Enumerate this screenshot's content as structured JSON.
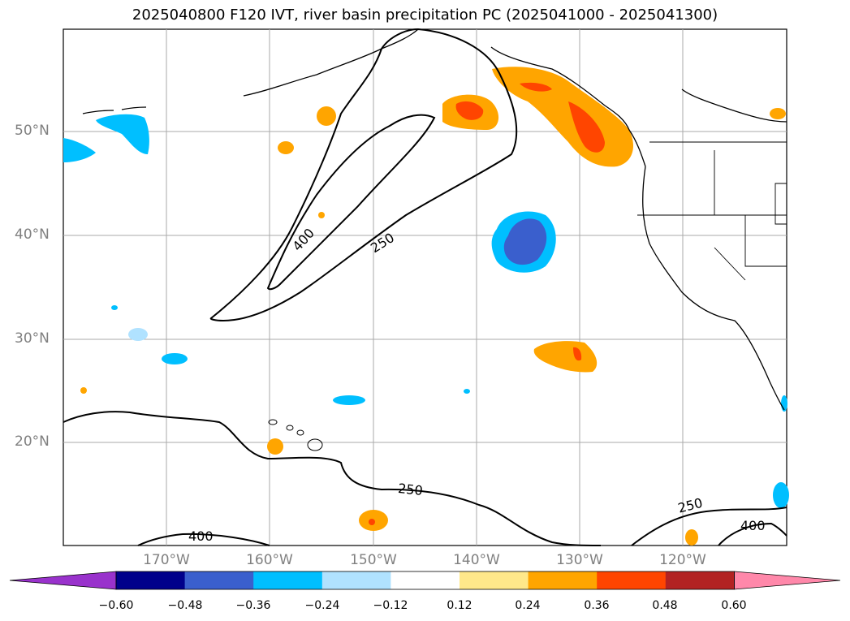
{
  "title": "2025040800 F120 IVT, river basin precipitation PC (2025041000 - 2025041300)",
  "map": {
    "lat_labels": [
      "50°N",
      "40°N",
      "30°N",
      "20°N"
    ],
    "lon_labels": [
      "170°W",
      "160°W",
      "150°W",
      "140°W",
      "130°W",
      "120°W"
    ],
    "contour_labels": [
      "400",
      "250",
      "250",
      "400",
      "250",
      "400"
    ]
  },
  "colorbar": {
    "ticks": [
      "−0.60",
      "−0.48",
      "−0.36",
      "−0.24",
      "−0.12",
      "0.12",
      "0.24",
      "0.36",
      "0.48",
      "0.60"
    ],
    "colors": [
      "#9932cc",
      "#00008b",
      "#3a5fcd",
      "#00bfff",
      "#b0e2ff",
      "#ffffff",
      "#ffe88a",
      "#ffa500",
      "#ff4500",
      "#b22222",
      "#ff88aa"
    ]
  }
}
